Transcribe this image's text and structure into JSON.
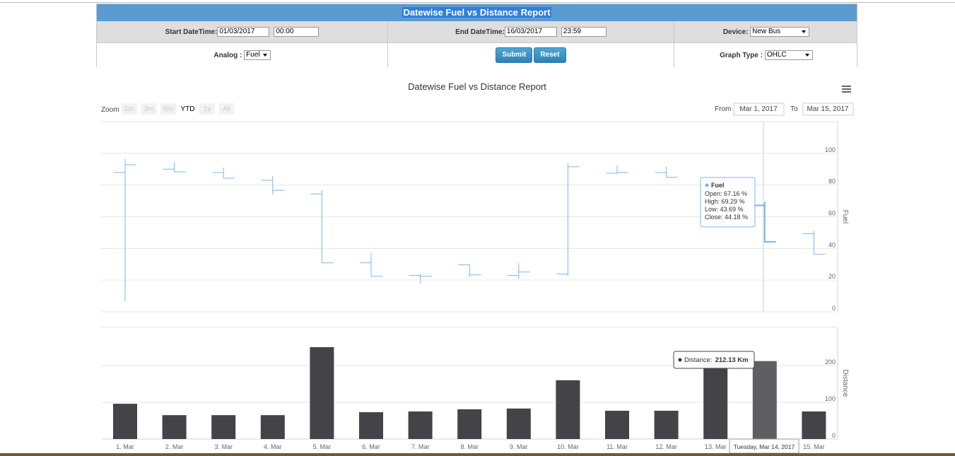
{
  "form": {
    "title": "Datewise Fuel vs Distance Report",
    "start_label": "Start DateTime:",
    "start_date": "01/03/2017",
    "start_time": "00:00",
    "end_label": "End DateTime:",
    "end_date": "16/03/2017",
    "end_time": "23:59",
    "device_label": "Device:",
    "device": "New Bus",
    "analog_label": "Analog :",
    "analog": "Fuel",
    "submit": "Submit",
    "reset": "Reset",
    "graph_type_label": "Graph Type :",
    "graph_type": "OHLC"
  },
  "range_selector": {
    "zoom_label": "Zoom",
    "buttons": [
      "1m",
      "3m",
      "6m",
      "YTD",
      "1y",
      "All"
    ],
    "active": "YTD",
    "from_label": "From",
    "from": "Mar 1, 2017",
    "to_label": "To",
    "to": "Mar 15, 2017"
  },
  "chart_data": [
    {
      "type": "ohlc",
      "title": "Datewise Fuel vs Distance Report",
      "y_label": "Fuel",
      "ylim": [
        0,
        120
      ],
      "yticks": [
        0,
        20,
        40,
        60,
        80,
        100
      ],
      "grid": true,
      "series": [
        {
          "name": "Fuel",
          "color": "#7cb5ec",
          "open": [
            87.9,
            90,
            87.9,
            83,
            74.4,
            30.9,
            22.9,
            29.6,
            22.9,
            23.8,
            87.4,
            87.9,
            null,
            67.16,
            49.3
          ],
          "high": [
            96.4,
            94.6,
            91,
            85.7,
            76.7,
            37.2,
            23.8,
            29.6,
            30.9,
            93.7,
            92.4,
            91.5,
            null,
            69.29,
            51.1
          ],
          "low": [
            6.7,
            88.3,
            84.3,
            74,
            30.9,
            22,
            17.9,
            22,
            20.6,
            22.9,
            87.4,
            84.8,
            null,
            43.69,
            36.3
          ],
          "close": [
            92.8,
            88.3,
            84.3,
            76.7,
            30.9,
            22.4,
            22.4,
            23.3,
            25.1,
            91.5,
            87.9,
            84.8,
            null,
            44.18,
            36.3
          ]
        }
      ],
      "tooltip": {
        "title": "Fuel",
        "lines": [
          "Open: 67.16 %",
          "High: 69.29 %",
          "Low: 43.69 %",
          "Close: 44.18 %"
        ]
      }
    },
    {
      "type": "bar",
      "y_label": "Distance",
      "categories": [
        "1. Mar",
        "2. Mar",
        "3. Mar",
        "4. Mar",
        "5. Mar",
        "6. Mar",
        "7. Mar",
        "8. Mar",
        "9. Mar",
        "10. Mar",
        "11. Mar",
        "12. Mar",
        "13. Mar",
        null,
        "15. Mar"
      ],
      "crosshair_label": "Tuesday, Mar 14, 2017",
      "ylim": [
        0,
        304
      ],
      "yticks": [
        0,
        100,
        200
      ],
      "grid": true,
      "series": [
        {
          "name": "Distance",
          "color": "#434348",
          "values": [
            96,
            65,
            65,
            65,
            250,
            73,
            75,
            81,
            83,
            160,
            77,
            77,
            210,
            212.13,
            75
          ]
        }
      ],
      "tooltip": {
        "label": "Distance:",
        "value": "212.13 Km"
      }
    }
  ]
}
